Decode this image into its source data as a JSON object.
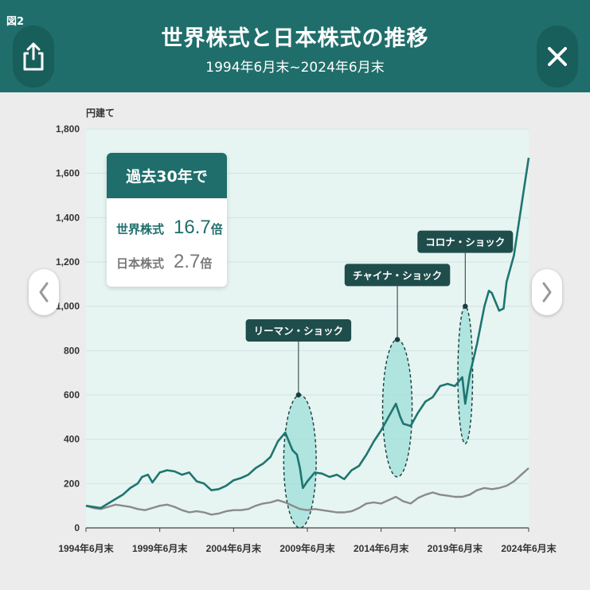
{
  "header": {
    "figure_label": "図2",
    "title": "世界株式と日本株式の推移",
    "subtitle": "1994年6月末~2024年6月末",
    "share_icon": "share-icon",
    "close_icon": "close-icon"
  },
  "navigation": {
    "prev_icon": "chevron-left-icon",
    "next_icon": "chevron-right-icon"
  },
  "stats": {
    "heading": "過去30年で",
    "rows": [
      {
        "label": "世界株式",
        "value": "16.7",
        "unit": "倍"
      },
      {
        "label": "日本株式",
        "value": "2.7",
        "unit": "倍"
      }
    ]
  },
  "colors": {
    "header": "#1f6e6b",
    "world": "#1e7570",
    "japan": "#8a8a8a",
    "highlight": "#9edfd8"
  },
  "chart_data": {
    "type": "line",
    "unit_label": "円建て",
    "ylim": [
      0,
      1800
    ],
    "yticks": [
      0,
      200,
      400,
      600,
      800,
      1000,
      1200,
      1400,
      1600,
      1800
    ],
    "ytick_labels": [
      "0",
      "200",
      "400",
      "600",
      "800",
      "1,000",
      "1,200",
      "1,400",
      "1,600",
      "1,800"
    ],
    "xlim": [
      1994.5,
      2024.5
    ],
    "xticks": [
      1994.5,
      1999.5,
      2004.5,
      2009.5,
      2014.5,
      2019.5,
      2024.5
    ],
    "xtick_labels": [
      "1994年6月末",
      "1999年6月末",
      "2004年6月末",
      "2009年6月末",
      "2014年6月末",
      "2019年6月末",
      "2024年6月末"
    ],
    "grid": true,
    "series": [
      {
        "name": "世界株式",
        "x": [
          1994.5,
          1995.0,
          1995.5,
          1996.0,
          1996.5,
          1997.0,
          1997.5,
          1998.0,
          1998.3,
          1998.7,
          1999.0,
          1999.5,
          2000.0,
          2000.5,
          2001.0,
          2001.5,
          2002.0,
          2002.5,
          2003.0,
          2003.5,
          2004.0,
          2004.5,
          2005.0,
          2005.5,
          2006.0,
          2006.5,
          2007.0,
          2007.5,
          2008.0,
          2008.5,
          2008.8,
          2009.0,
          2009.2,
          2009.5,
          2010.0,
          2010.5,
          2011.0,
          2011.5,
          2012.0,
          2012.5,
          2013.0,
          2013.5,
          2014.0,
          2014.5,
          2015.0,
          2015.5,
          2015.8,
          2016.0,
          2016.5,
          2017.0,
          2017.5,
          2018.0,
          2018.5,
          2019.0,
          2019.5,
          2020.0,
          2020.2,
          2020.5,
          2021.0,
          2021.5,
          2021.8,
          2022.0,
          2022.5,
          2022.8,
          2023.0,
          2023.5,
          2024.0,
          2024.5
        ],
        "y": [
          100,
          95,
          90,
          110,
          130,
          150,
          180,
          200,
          230,
          240,
          205,
          250,
          260,
          255,
          240,
          250,
          210,
          200,
          170,
          175,
          190,
          215,
          225,
          240,
          270,
          290,
          320,
          390,
          430,
          350,
          330,
          270,
          180,
          210,
          250,
          245,
          230,
          240,
          220,
          260,
          280,
          330,
          390,
          440,
          500,
          560,
          500,
          470,
          460,
          520,
          570,
          590,
          640,
          650,
          640,
          680,
          560,
          690,
          830,
          1000,
          1070,
          1060,
          980,
          990,
          1110,
          1230,
          1450,
          1670
        ]
      },
      {
        "name": "日本株式",
        "x": [
          1994.5,
          1995.0,
          1995.5,
          1996.0,
          1996.5,
          1997.0,
          1997.5,
          1998.0,
          1998.5,
          1999.0,
          1999.5,
          2000.0,
          2000.5,
          2001.0,
          2001.5,
          2002.0,
          2002.5,
          2003.0,
          2003.5,
          2004.0,
          2004.5,
          2005.0,
          2005.5,
          2006.0,
          2006.5,
          2007.0,
          2007.5,
          2008.0,
          2008.5,
          2009.0,
          2009.5,
          2010.0,
          2010.5,
          2011.0,
          2011.5,
          2012.0,
          2012.5,
          2013.0,
          2013.5,
          2014.0,
          2014.5,
          2015.0,
          2015.5,
          2016.0,
          2016.5,
          2017.0,
          2017.5,
          2018.0,
          2018.5,
          2019.0,
          2019.5,
          2020.0,
          2020.5,
          2021.0,
          2021.5,
          2022.0,
          2022.5,
          2023.0,
          2023.5,
          2024.0,
          2024.5
        ],
        "y": [
          100,
          90,
          85,
          95,
          105,
          100,
          95,
          85,
          80,
          90,
          100,
          105,
          95,
          80,
          70,
          75,
          70,
          60,
          65,
          75,
          80,
          80,
          85,
          100,
          110,
          115,
          125,
          115,
          100,
          85,
          80,
          85,
          80,
          75,
          70,
          70,
          75,
          90,
          110,
          115,
          110,
          125,
          140,
          120,
          110,
          135,
          150,
          160,
          150,
          145,
          140,
          140,
          150,
          170,
          180,
          175,
          180,
          190,
          210,
          240,
          270
        ]
      }
    ],
    "annotations": [
      {
        "label": "リーマン・ショック",
        "x_center": 2008.9,
        "x_range": [
          2007.9,
          2010.1
        ],
        "y_range": [
          0,
          600
        ]
      },
      {
        "label": "チャイナ・ショック",
        "x_center": 2015.6,
        "x_range": [
          2014.6,
          2016.6
        ],
        "y_range": [
          230,
          850
        ]
      },
      {
        "label": "コロナ・ショック",
        "x_center": 2020.2,
        "x_range": [
          2019.7,
          2020.7
        ],
        "y_range": [
          380,
          1000
        ]
      }
    ]
  }
}
